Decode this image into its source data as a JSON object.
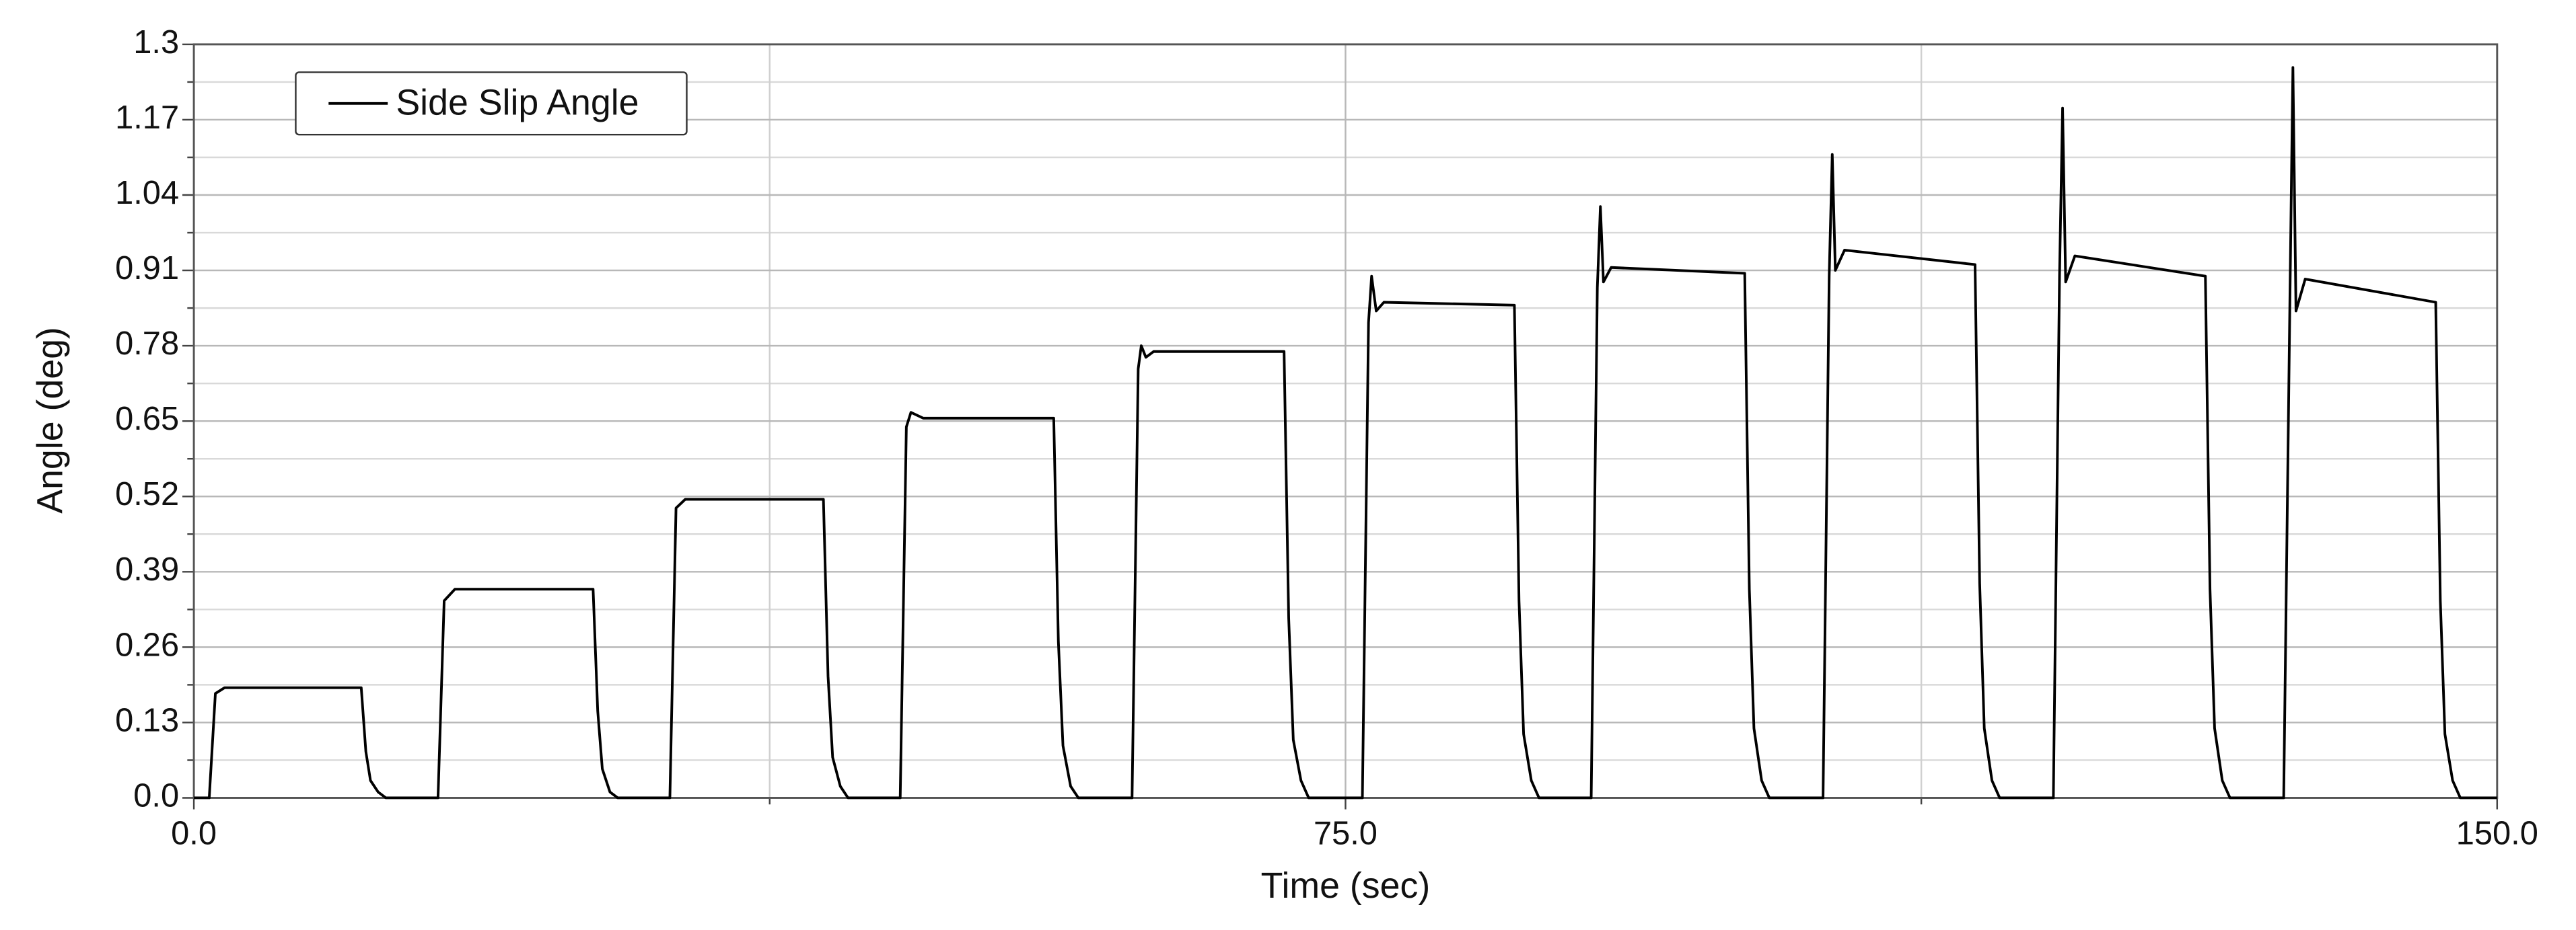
{
  "chart_data": {
    "type": "line",
    "x_label": "Time (sec)",
    "y_label": "Angle (deg)",
    "xlim": [
      0,
      150
    ],
    "ylim": [
      0,
      1.3
    ],
    "xticks": [
      {
        "value": 0,
        "label": "0.0"
      },
      {
        "value": 75,
        "label": "75.0"
      },
      {
        "value": 150,
        "label": "150.0"
      }
    ],
    "x_minor_ticks": [
      37.5,
      112.5
    ],
    "yticks": [
      {
        "value": 0,
        "label": "0.0"
      },
      0.13,
      0.26,
      0.39,
      0.52,
      0.65,
      0.78,
      0.91,
      1.04,
      1.17,
      1.3
    ],
    "y_minor_ticks": [
      0.065,
      0.195,
      0.325,
      0.455,
      0.585,
      0.715,
      0.845,
      0.975,
      1.105,
      1.235
    ],
    "grid": true,
    "legend": "upper left",
    "x": [
      0,
      1.0,
      1.4,
      2.0,
      10.9,
      11.2,
      11.5,
      12.0,
      12.5,
      15.9,
      16.3,
      17.0,
      26.0,
      26.3,
      26.6,
      27.1,
      27.6,
      31.0,
      31.4,
      32.0,
      41.0,
      41.3,
      41.6,
      42.1,
      42.6,
      46.0,
      46.4,
      46.7,
      47.5,
      56.0,
      56.3,
      56.6,
      57.1,
      57.6,
      61.1,
      61.5,
      61.7,
      62.0,
      62.5,
      71.0,
      71.3,
      71.6,
      72.1,
      72.6,
      76.1,
      76.5,
      76.7,
      77.0,
      77.5,
      86.0,
      86.3,
      86.6,
      87.1,
      87.6,
      91.0,
      91.4,
      91.6,
      91.8,
      92.3,
      101.0,
      101.3,
      101.6,
      102.1,
      102.6,
      106.1,
      106.5,
      106.7,
      106.9,
      107.5,
      116.0,
      116.3,
      116.6,
      117.1,
      117.6,
      121.1,
      121.5,
      121.7,
      121.9,
      122.5,
      131.0,
      131.3,
      131.6,
      132.1,
      132.6,
      136.1,
      136.5,
      136.7,
      136.9,
      137.5,
      146.0,
      146.3,
      146.6,
      147.1,
      147.6,
      150
    ],
    "series": [
      {
        "name": "Side Slip Angle",
        "color": "#000000",
        "values": [
          0,
          0,
          0.18,
          0.19,
          0.19,
          0.08,
          0.03,
          0.01,
          0,
          0,
          0.34,
          0.36,
          0.36,
          0.15,
          0.05,
          0.01,
          0,
          0,
          0.5,
          0.515,
          0.515,
          0.21,
          0.07,
          0.02,
          0,
          0,
          0.64,
          0.665,
          0.655,
          0.655,
          0.27,
          0.09,
          0.02,
          0,
          0,
          0.74,
          0.78,
          0.76,
          0.77,
          0.77,
          0.31,
          0.1,
          0.03,
          0,
          0,
          0.82,
          0.9,
          0.84,
          0.855,
          0.85,
          0.34,
          0.11,
          0.03,
          0,
          0,
          0.88,
          1.02,
          0.89,
          0.915,
          0.905,
          0.36,
          0.12,
          0.03,
          0,
          0,
          0.9,
          1.11,
          0.91,
          0.945,
          0.92,
          0.37,
          0.12,
          0.03,
          0,
          0,
          0.9,
          1.19,
          0.89,
          0.935,
          0.9,
          0.36,
          0.12,
          0.03,
          0,
          0,
          0.85,
          1.26,
          0.84,
          0.895,
          0.855,
          0.34,
          0.11,
          0.03,
          0,
          0
        ]
      }
    ]
  }
}
